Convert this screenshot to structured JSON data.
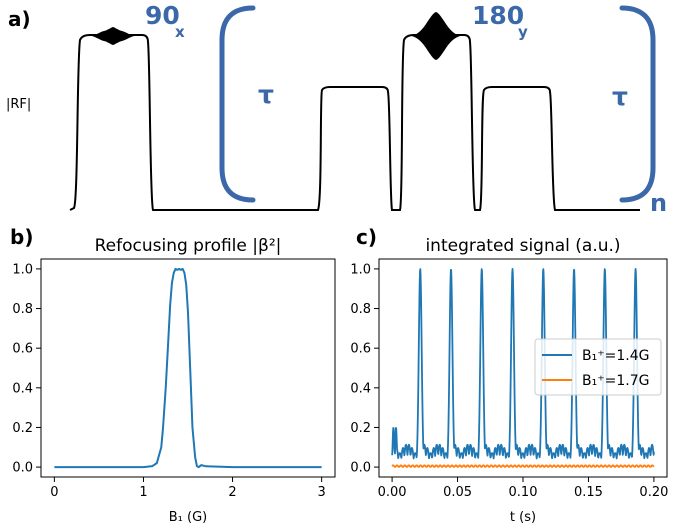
{
  "panel_a": {
    "letter": "a)",
    "rf_label": "|RF|",
    "pulse1_main": "90",
    "pulse1_sub": "x",
    "pulse2_main": "180",
    "pulse2_sub": "y",
    "tau_left": "τ",
    "tau_right": "τ",
    "repeat_label": "n",
    "annotation_color": "#3a68a8"
  },
  "chart_data": [
    {
      "type": "line",
      "panel": "b)",
      "title": "Refocusing profile |β²|",
      "xlabel": "B₁ (G)",
      "ylabel": "",
      "xlim": [
        -0.15,
        3.15
      ],
      "ylim": [
        -0.05,
        1.05
      ],
      "xticks": [
        0,
        1,
        2,
        3
      ],
      "yticks": [
        0.0,
        0.2,
        0.4,
        0.6,
        0.8,
        1.0
      ],
      "ytick_labels": [
        "0.0",
        "0.2",
        "0.4",
        "0.6",
        "0.8",
        "1.0"
      ],
      "grid": false,
      "series": [
        {
          "color": "#1f77b4",
          "x": [
            0,
            0.5,
            1.0,
            1.1,
            1.15,
            1.2,
            1.22,
            1.25,
            1.28,
            1.3,
            1.32,
            1.34,
            1.36,
            1.38,
            1.4,
            1.42,
            1.44,
            1.46,
            1.48,
            1.5,
            1.52,
            1.55,
            1.58,
            1.6,
            1.62,
            1.65,
            1.7,
            2.0,
            2.5,
            3.0
          ],
          "y": [
            0,
            0,
            0,
            0.005,
            0.02,
            0.1,
            0.2,
            0.4,
            0.65,
            0.82,
            0.93,
            0.98,
            1.0,
            0.995,
            1.0,
            0.995,
            1.0,
            0.98,
            0.92,
            0.78,
            0.55,
            0.2,
            0.05,
            0.005,
            0.0,
            0.01,
            0.004,
            0,
            0,
            0
          ]
        }
      ]
    },
    {
      "type": "line",
      "panel": "c)",
      "title": "integrated signal (a.u.)",
      "xlabel": "t (s)",
      "ylabel": "",
      "xlim": [
        -0.01,
        0.21
      ],
      "ylim": [
        -0.05,
        1.05
      ],
      "xticks": [
        0.0,
        0.05,
        0.1,
        0.15,
        0.2
      ],
      "xtick_labels": [
        "0.00",
        "0.05",
        "0.10",
        "0.15",
        "0.20"
      ],
      "yticks": [
        0.0,
        0.2,
        0.4,
        0.6,
        0.8,
        1.0
      ],
      "ytick_labels": [
        "0.0",
        "0.2",
        "0.4",
        "0.6",
        "0.8",
        "1.0"
      ],
      "grid": false,
      "legend": "center-right",
      "series": [
        {
          "name": "B₁⁺=1.4G",
          "color": "#1f77b4",
          "peak_times": [
            0.0215,
            0.045,
            0.0685,
            0.092,
            0.1155,
            0.139,
            0.1625,
            0.186
          ],
          "t_end": 0.2
        },
        {
          "name": "B₁⁺=1.7G",
          "color": "#ff7f0e",
          "level": 0.005,
          "t_end": 0.2
        }
      ]
    }
  ]
}
